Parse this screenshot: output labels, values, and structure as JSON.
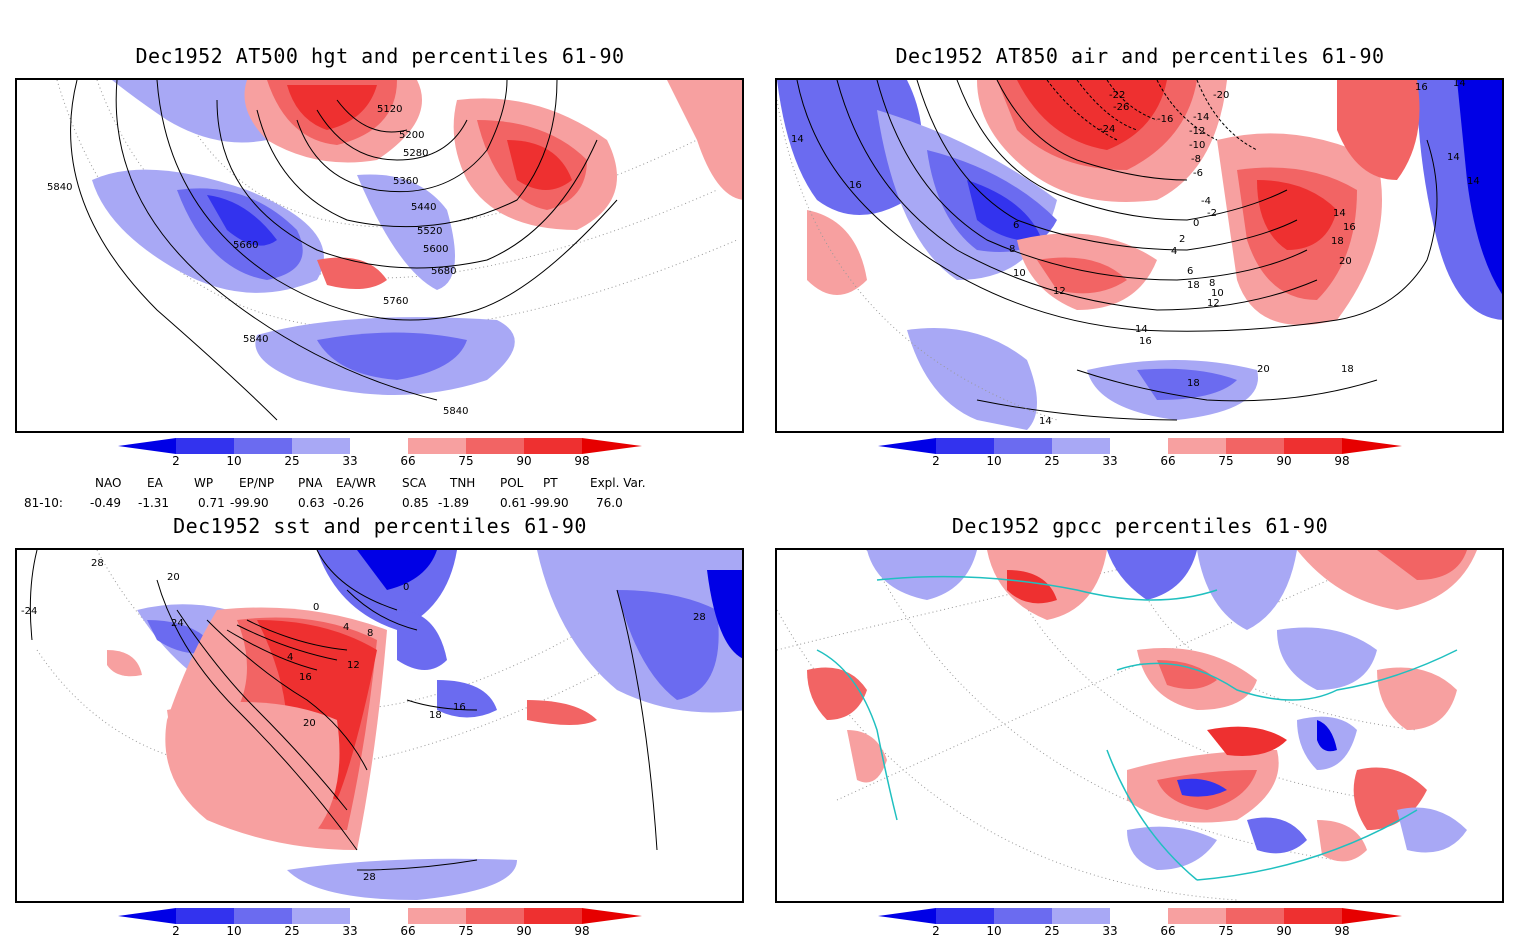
{
  "panels": [
    {
      "id": "p1",
      "title": "Dec1952 AT500 hgt and percentiles 61-90",
      "contour_labels": [
        "5840",
        "5120",
        "5200",
        "5280",
        "5360",
        "5440",
        "5520",
        "5600",
        "5660",
        "5680",
        "5760",
        "5840",
        "5840"
      ]
    },
    {
      "id": "p2",
      "title": "Dec1952 AT850 air and percentiles 61-90",
      "contour_labels": [
        "14",
        "16",
        "6",
        "8",
        "10",
        "12",
        "14",
        "16",
        "18",
        "14",
        "-20",
        "-22",
        "-26",
        "-24",
        "-16",
        "-14",
        "-12",
        "-10",
        "-8",
        "-6",
        "-4",
        "-2",
        "0",
        "2",
        "4",
        "6",
        "8",
        "10",
        "12",
        "14",
        "16",
        "18",
        "20",
        "20",
        "18",
        "16",
        "14",
        "14",
        "18",
        "14"
      ]
    },
    {
      "id": "p3",
      "title": "Dec1952 sst and percentiles 61-90",
      "contour_labels": [
        "28",
        "-24",
        "20",
        "24",
        "0",
        "0",
        "4",
        "8",
        "4",
        "16",
        "12",
        "20",
        "18",
        "16",
        "28",
        "28"
      ]
    },
    {
      "id": "p4",
      "title": "Dec1952 gpcc percentiles 61-90",
      "contour_labels": []
    }
  ],
  "colorbar": {
    "labels": [
      "2",
      "10",
      "25",
      "33",
      "66",
      "75",
      "90",
      "98"
    ],
    "colors": [
      "#0000e6",
      "#3333ee",
      "#6b6bf0",
      "#a8a8f5",
      "#ffffff",
      "#f7a0a0",
      "#f26464",
      "#ee3030",
      "#e60000"
    ]
  },
  "indices": {
    "headers": [
      "NAO",
      "EA",
      "WP",
      "EP/NP",
      "PNA",
      "EA/WR",
      "SCA",
      "TNH",
      "POL",
      "PT",
      "Expl. Var."
    ],
    "row_label": "81-10:",
    "values": [
      "-0.49",
      "-1.31",
      "0.71",
      "-99.90",
      "0.63",
      "-0.26",
      "0.85",
      "-1.89",
      "0.61",
      "-99.90",
      "76.0"
    ]
  }
}
